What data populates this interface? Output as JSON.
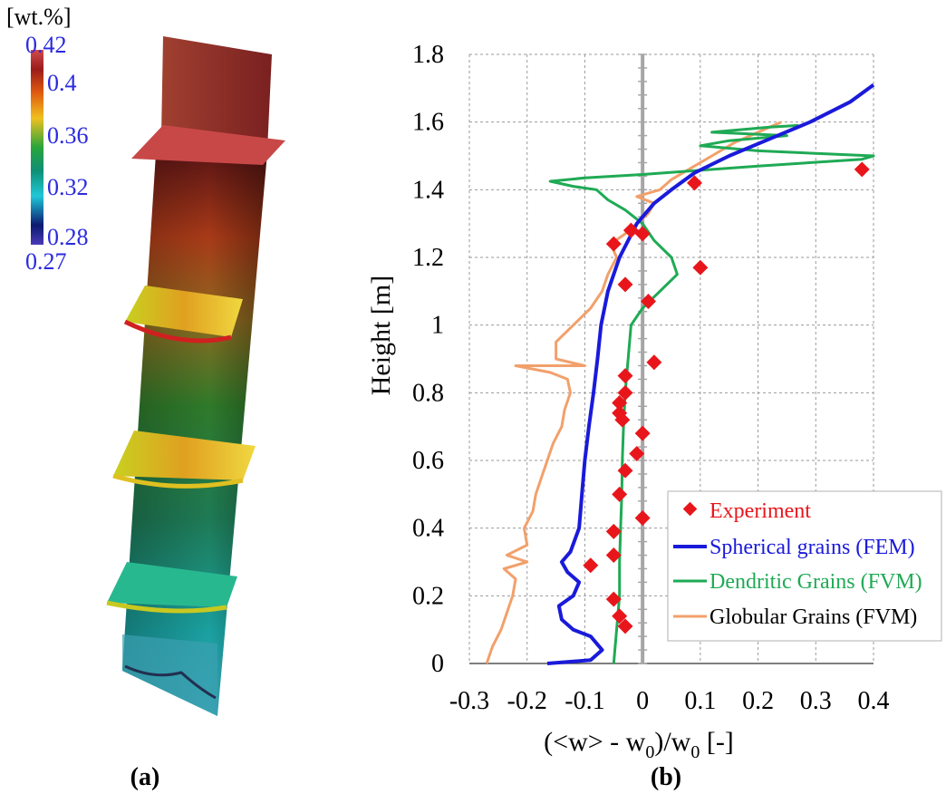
{
  "panel_a": {
    "label": "(a)",
    "colorbar": {
      "unit": "[wt.%]",
      "min": 0.27,
      "max": 0.42,
      "ticks": [
        "0.42",
        "0.4",
        "0.36",
        "0.32",
        "0.28",
        "0.27"
      ]
    }
  },
  "panel_b": {
    "label": "(b)"
  },
  "chart_data": {
    "type": "line",
    "xlabel_parts": {
      "pre": "(<w> - w",
      "sub": "0",
      "mid": ")/w",
      "sub2": "0",
      "post": " [-]"
    },
    "ylabel": "Height [m]",
    "xlim": [
      -0.3,
      0.4
    ],
    "ylim": [
      0,
      1.8
    ],
    "xticks": [
      "-0.3",
      "-0.2",
      "-0.1",
      "0",
      "0.1",
      "0.2",
      "0.3",
      "0.4"
    ],
    "yticks": [
      "0",
      "0.2",
      "0.4",
      "0.6",
      "0.8",
      "1",
      "1.2",
      "1.4",
      "1.6",
      "1.8"
    ],
    "grid": true,
    "legend_position": "bottom-right",
    "colors": {
      "experiment": "#e8161b",
      "fem": "#1a1adb",
      "dendritic": "#1faa55",
      "globular": "#f2a06b",
      "axis_zero": "#a6a6a6"
    },
    "series": [
      {
        "name": "Experiment",
        "kind": "scatter",
        "points": [
          [
            0.38,
            1.46
          ],
          [
            0.09,
            1.42
          ],
          [
            0.1,
            1.17
          ],
          [
            0.0,
            1.27
          ],
          [
            -0.02,
            1.28
          ],
          [
            -0.05,
            1.24
          ],
          [
            -0.03,
            1.12
          ],
          [
            0.01,
            1.07
          ],
          [
            0.02,
            0.89
          ],
          [
            -0.03,
            0.85
          ],
          [
            -0.03,
            0.8
          ],
          [
            -0.04,
            0.77
          ],
          [
            -0.04,
            0.74
          ],
          [
            -0.035,
            0.72
          ],
          [
            0.0,
            0.68
          ],
          [
            -0.01,
            0.62
          ],
          [
            -0.03,
            0.57
          ],
          [
            -0.04,
            0.5
          ],
          [
            0.0,
            0.43
          ],
          [
            -0.05,
            0.39
          ],
          [
            -0.05,
            0.32
          ],
          [
            -0.09,
            0.29
          ],
          [
            -0.05,
            0.19
          ],
          [
            -0.04,
            0.14
          ],
          [
            -0.03,
            0.11
          ]
        ]
      },
      {
        "name": "Spherical grains (FEM)",
        "kind": "line",
        "points": [
          [
            -0.165,
            0
          ],
          [
            -0.09,
            0.01
          ],
          [
            -0.07,
            0.04
          ],
          [
            -0.09,
            0.08
          ],
          [
            -0.12,
            0.1
          ],
          [
            -0.14,
            0.13
          ],
          [
            -0.145,
            0.17
          ],
          [
            -0.12,
            0.2
          ],
          [
            -0.11,
            0.24
          ],
          [
            -0.13,
            0.27
          ],
          [
            -0.14,
            0.3
          ],
          [
            -0.125,
            0.33
          ],
          [
            -0.11,
            0.4
          ],
          [
            -0.105,
            0.5
          ],
          [
            -0.1,
            0.6
          ],
          [
            -0.093,
            0.7
          ],
          [
            -0.085,
            0.8
          ],
          [
            -0.078,
            0.9
          ],
          [
            -0.072,
            1.0
          ],
          [
            -0.06,
            1.1
          ],
          [
            -0.04,
            1.2
          ],
          [
            -0.01,
            1.3
          ],
          [
            0.02,
            1.36
          ],
          [
            0.05,
            1.4
          ],
          [
            0.09,
            1.45
          ],
          [
            0.15,
            1.5
          ],
          [
            0.22,
            1.55
          ],
          [
            0.29,
            1.6
          ],
          [
            0.36,
            1.66
          ],
          [
            0.4,
            1.71
          ]
        ]
      },
      {
        "name": "Dendritic Grains (FVM)",
        "kind": "line",
        "points": [
          [
            -0.05,
            0
          ],
          [
            -0.045,
            0.1
          ],
          [
            -0.04,
            0.2
          ],
          [
            -0.04,
            0.3
          ],
          [
            -0.038,
            0.4
          ],
          [
            -0.036,
            0.5
          ],
          [
            -0.035,
            0.6
          ],
          [
            -0.033,
            0.7
          ],
          [
            -0.03,
            0.8
          ],
          [
            -0.025,
            0.9
          ],
          [
            -0.02,
            1.0
          ],
          [
            0.0,
            1.05
          ],
          [
            0.03,
            1.1
          ],
          [
            0.06,
            1.15
          ],
          [
            0.05,
            1.2
          ],
          [
            0.02,
            1.25
          ],
          [
            0.0,
            1.3
          ],
          [
            -0.03,
            1.34
          ],
          [
            -0.06,
            1.37
          ],
          [
            -0.08,
            1.4
          ],
          [
            -0.12,
            1.41
          ],
          [
            -0.16,
            1.425
          ],
          [
            -0.1,
            1.435
          ],
          [
            0.0,
            1.445
          ],
          [
            0.08,
            1.455
          ],
          [
            0.2,
            1.47
          ],
          [
            0.38,
            1.49
          ],
          [
            0.4,
            1.5
          ],
          [
            0.2,
            1.515
          ],
          [
            0.1,
            1.53
          ],
          [
            0.15,
            1.545
          ],
          [
            0.25,
            1.56
          ],
          [
            0.12,
            1.57
          ],
          [
            0.22,
            1.585
          ],
          [
            0.27,
            1.59
          ]
        ]
      },
      {
        "name": "Globular Grains (FVM)",
        "kind": "line",
        "points": [
          [
            -0.27,
            0
          ],
          [
            -0.26,
            0.05
          ],
          [
            -0.245,
            0.1
          ],
          [
            -0.235,
            0.15
          ],
          [
            -0.225,
            0.2
          ],
          [
            -0.22,
            0.25
          ],
          [
            -0.24,
            0.28
          ],
          [
            -0.2,
            0.3
          ],
          [
            -0.235,
            0.32
          ],
          [
            -0.2,
            0.35
          ],
          [
            -0.205,
            0.4
          ],
          [
            -0.19,
            0.45
          ],
          [
            -0.185,
            0.5
          ],
          [
            -0.175,
            0.55
          ],
          [
            -0.165,
            0.6
          ],
          [
            -0.155,
            0.65
          ],
          [
            -0.14,
            0.7
          ],
          [
            -0.135,
            0.75
          ],
          [
            -0.125,
            0.8
          ],
          [
            -0.13,
            0.84
          ],
          [
            -0.16,
            0.86
          ],
          [
            -0.22,
            0.88
          ],
          [
            -0.1,
            0.88
          ],
          [
            -0.15,
            0.9
          ],
          [
            -0.15,
            0.95
          ],
          [
            -0.12,
            1.0
          ],
          [
            -0.09,
            1.05
          ],
          [
            -0.07,
            1.1
          ],
          [
            -0.06,
            1.15
          ],
          [
            -0.045,
            1.2
          ],
          [
            -0.055,
            1.24
          ],
          [
            -0.03,
            1.27
          ],
          [
            -0.01,
            1.3
          ],
          [
            0.01,
            1.33
          ],
          [
            0.02,
            1.36
          ],
          [
            -0.01,
            1.38
          ],
          [
            0.03,
            1.4
          ],
          [
            0.05,
            1.43
          ],
          [
            0.08,
            1.46
          ],
          [
            0.12,
            1.5
          ],
          [
            0.16,
            1.54
          ],
          [
            0.2,
            1.57
          ],
          [
            0.24,
            1.6
          ]
        ]
      }
    ]
  }
}
